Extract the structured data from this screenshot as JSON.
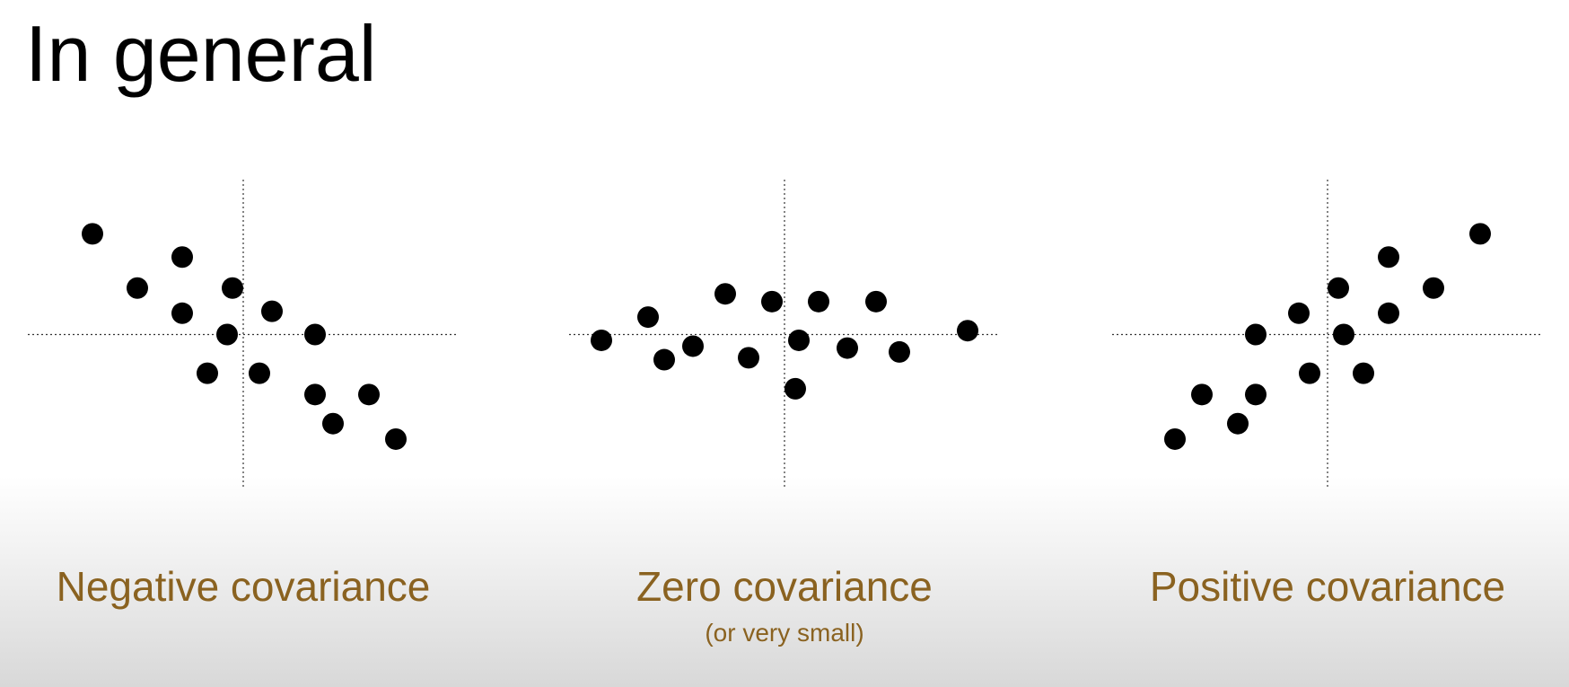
{
  "title": "In general",
  "captions": {
    "negative": "Negative covariance",
    "zero": "Zero covariance",
    "zero_sub": "(or very small)",
    "positive": "Positive covariance"
  },
  "colors": {
    "caption": "#8a6220",
    "points": "#000000",
    "axes": "#333333"
  },
  "chart_data": [
    {
      "type": "scatter",
      "xlim": [
        -6,
        6
      ],
      "ylim": [
        -4,
        4
      ],
      "grid": false,
      "points": [
        {
          "x": -4.2,
          "y": 2.6
        },
        {
          "x": -2.95,
          "y": 1.2
        },
        {
          "x": -1.7,
          "y": 2.0
        },
        {
          "x": -1.7,
          "y": 0.55
        },
        {
          "x": -0.3,
          "y": 1.2
        },
        {
          "x": -0.45,
          "y": 0.0
        },
        {
          "x": 0.8,
          "y": 0.6
        },
        {
          "x": 2.0,
          "y": 0.0
        },
        {
          "x": -1.0,
          "y": -1.0
        },
        {
          "x": 0.45,
          "y": -1.0
        },
        {
          "x": 2.0,
          "y": -1.55
        },
        {
          "x": 2.5,
          "y": -2.3
        },
        {
          "x": 3.5,
          "y": -1.55
        },
        {
          "x": 4.25,
          "y": -2.7
        }
      ]
    },
    {
      "type": "scatter",
      "xlim": [
        -6,
        6
      ],
      "ylim": [
        -4,
        4
      ],
      "grid": false,
      "points": [
        {
          "x": -5.1,
          "y": -0.15
        },
        {
          "x": -3.8,
          "y": 0.45
        },
        {
          "x": -3.35,
          "y": -0.65
        },
        {
          "x": -2.55,
          "y": -0.3
        },
        {
          "x": -1.65,
          "y": 1.05
        },
        {
          "x": -1.0,
          "y": -0.6
        },
        {
          "x": -0.35,
          "y": 0.85
        },
        {
          "x": 0.4,
          "y": -0.15
        },
        {
          "x": 0.95,
          "y": 0.85
        },
        {
          "x": 1.75,
          "y": -0.35
        },
        {
          "x": 2.55,
          "y": 0.85
        },
        {
          "x": 3.2,
          "y": -0.45
        },
        {
          "x": 0.3,
          "y": -1.4
        },
        {
          "x": 5.1,
          "y": 0.1
        }
      ]
    },
    {
      "type": "scatter",
      "xlim": [
        -6,
        6
      ],
      "ylim": [
        -4,
        4
      ],
      "grid": false,
      "points": [
        {
          "x": -4.25,
          "y": -2.7
        },
        {
          "x": -3.5,
          "y": -1.55
        },
        {
          "x": -2.5,
          "y": -2.3
        },
        {
          "x": -2.0,
          "y": -1.55
        },
        {
          "x": -2.0,
          "y": 0.0
        },
        {
          "x": -0.8,
          "y": 0.55
        },
        {
          "x": -0.5,
          "y": -1.0
        },
        {
          "x": 0.3,
          "y": 1.2
        },
        {
          "x": 0.45,
          "y": 0.0
        },
        {
          "x": 1.0,
          "y": -1.0
        },
        {
          "x": 1.7,
          "y": 2.0
        },
        {
          "x": 1.7,
          "y": 0.55
        },
        {
          "x": 2.95,
          "y": 1.2
        },
        {
          "x": 4.25,
          "y": 2.6
        }
      ]
    }
  ]
}
